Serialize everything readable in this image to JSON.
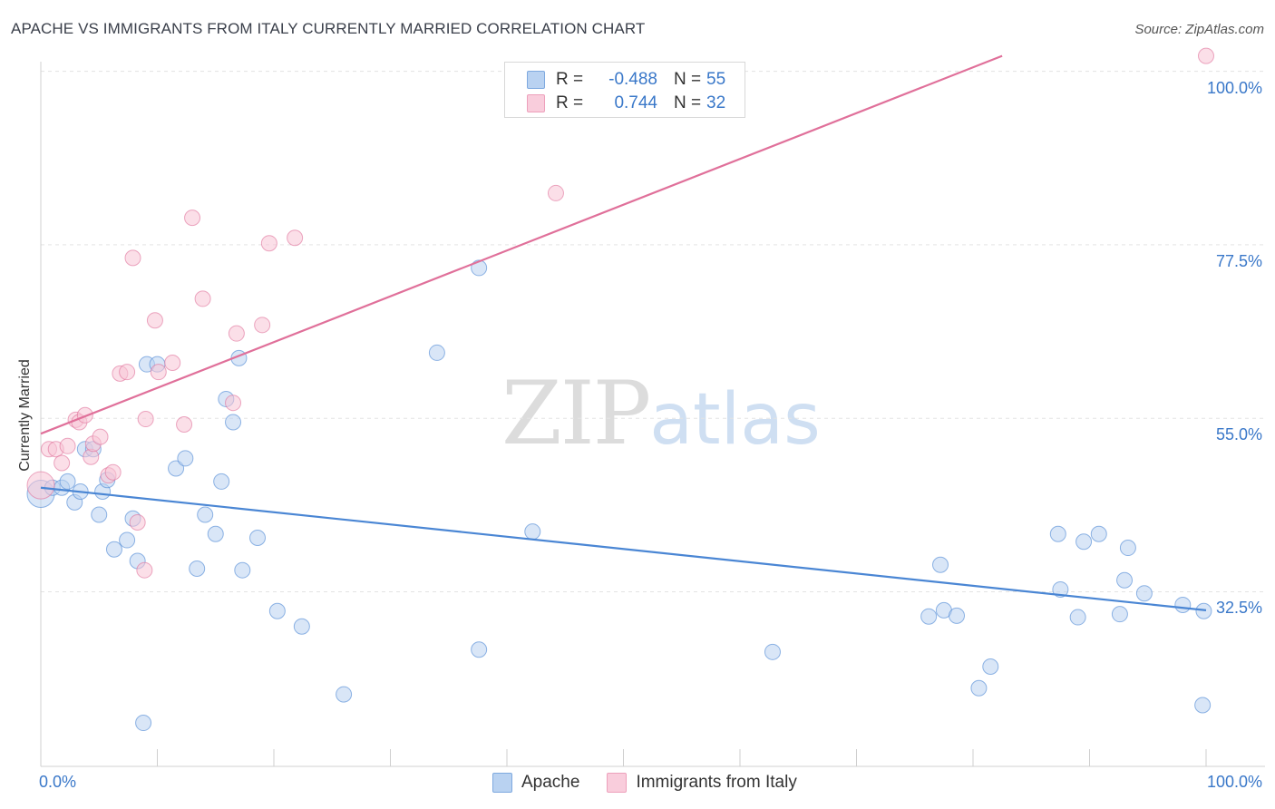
{
  "header": {
    "title": "APACHE VS IMMIGRANTS FROM ITALY CURRENTLY MARRIED CORRELATION CHART",
    "source": "Source: ZipAtlas.com"
  },
  "watermark": {
    "zip": "ZIP",
    "atlas": "atlas"
  },
  "legend_top": {
    "rows": [
      {
        "r_label": "R =",
        "r_value": "-0.488",
        "n_label": "N =",
        "n_value": "55",
        "color": "#9dc0ec"
      },
      {
        "r_label": "R =",
        "r_value": "0.744",
        "n_label": "N =",
        "n_value": "32",
        "color": "#f3a9c2"
      }
    ]
  },
  "legend_bottom": {
    "items": [
      {
        "label": "Apache"
      },
      {
        "label": "Immigrants from Italy"
      }
    ]
  },
  "chart_data": {
    "type": "scatter",
    "title": "APACHE VS IMMIGRANTS FROM ITALY CURRENTLY MARRIED CORRELATION CHART",
    "xlabel": "",
    "ylabel": "Currently Married",
    "xlim": [
      0,
      100
    ],
    "ylim": [
      10,
      102
    ],
    "x_tick_labels": [
      "0.0%",
      "100.0%"
    ],
    "y_ticks": [
      32.5,
      55.0,
      77.5,
      100.0
    ],
    "y_tick_labels": [
      "32.5%",
      "55.0%",
      "77.5%",
      "100.0%"
    ],
    "grid": true,
    "series": [
      {
        "name": "Apache",
        "color": "#4a86d4",
        "fill": "#b9d2f1",
        "r": -0.488,
        "n": 55,
        "trend": {
          "x": [
            0,
            100
          ],
          "y": [
            46.0,
            30.1
          ]
        },
        "points": [
          {
            "x": 0.0,
            "y": 45.2,
            "big": true
          },
          {
            "x": 1.0,
            "y": 46.0
          },
          {
            "x": 1.8,
            "y": 46.0
          },
          {
            "x": 2.3,
            "y": 46.8
          },
          {
            "x": 2.9,
            "y": 44.1
          },
          {
            "x": 3.4,
            "y": 45.5
          },
          {
            "x": 3.8,
            "y": 51.0
          },
          {
            "x": 4.5,
            "y": 51.0
          },
          {
            "x": 5.0,
            "y": 42.5
          },
          {
            "x": 5.3,
            "y": 45.5
          },
          {
            "x": 5.7,
            "y": 47.0
          },
          {
            "x": 6.3,
            "y": 38.0
          },
          {
            "x": 7.4,
            "y": 39.2
          },
          {
            "x": 7.9,
            "y": 42.0
          },
          {
            "x": 8.3,
            "y": 36.5
          },
          {
            "x": 8.8,
            "y": 15.5
          },
          {
            "x": 9.1,
            "y": 62.0
          },
          {
            "x": 10.0,
            "y": 62.0
          },
          {
            "x": 11.6,
            "y": 48.5
          },
          {
            "x": 12.4,
            "y": 49.8
          },
          {
            "x": 13.4,
            "y": 35.5
          },
          {
            "x": 14.1,
            "y": 42.5
          },
          {
            "x": 15.0,
            "y": 40.0
          },
          {
            "x": 15.5,
            "y": 46.8
          },
          {
            "x": 15.9,
            "y": 57.5
          },
          {
            "x": 16.5,
            "y": 54.5
          },
          {
            "x": 17.0,
            "y": 62.8
          },
          {
            "x": 17.3,
            "y": 35.3
          },
          {
            "x": 18.6,
            "y": 39.5
          },
          {
            "x": 20.3,
            "y": 30.0
          },
          {
            "x": 22.4,
            "y": 28.0
          },
          {
            "x": 26.0,
            "y": 19.2
          },
          {
            "x": 34.0,
            "y": 63.5
          },
          {
            "x": 37.6,
            "y": 74.5
          },
          {
            "x": 37.6,
            "y": 25.0
          },
          {
            "x": 42.2,
            "y": 40.3
          },
          {
            "x": 62.8,
            "y": 24.7
          },
          {
            "x": 76.2,
            "y": 29.3
          },
          {
            "x": 77.2,
            "y": 36.0
          },
          {
            "x": 77.5,
            "y": 30.1
          },
          {
            "x": 78.6,
            "y": 29.4
          },
          {
            "x": 80.5,
            "y": 20.0
          },
          {
            "x": 81.5,
            "y": 22.8
          },
          {
            "x": 87.3,
            "y": 40.0
          },
          {
            "x": 87.5,
            "y": 32.8
          },
          {
            "x": 89.0,
            "y": 29.2
          },
          {
            "x": 89.5,
            "y": 39.0
          },
          {
            "x": 90.8,
            "y": 40.0
          },
          {
            "x": 92.6,
            "y": 29.6
          },
          {
            "x": 93.0,
            "y": 34.0
          },
          {
            "x": 93.3,
            "y": 38.2
          },
          {
            "x": 94.7,
            "y": 32.3
          },
          {
            "x": 98.0,
            "y": 30.8
          },
          {
            "x": 99.7,
            "y": 17.8
          },
          {
            "x": 99.8,
            "y": 30.0
          }
        ]
      },
      {
        "name": "Immigrants from Italy",
        "color": "#e0709a",
        "fill": "#f7c4d5",
        "r": 0.744,
        "n": 32,
        "trend": {
          "x": [
            0,
            82.5
          ],
          "y": [
            53.0,
            102.0
          ]
        },
        "points": [
          {
            "x": 0.0,
            "y": 46.3,
            "big": true
          },
          {
            "x": 0.7,
            "y": 51.0
          },
          {
            "x": 1.3,
            "y": 51.0
          },
          {
            "x": 1.8,
            "y": 49.2
          },
          {
            "x": 2.3,
            "y": 51.4
          },
          {
            "x": 3.0,
            "y": 54.8
          },
          {
            "x": 3.3,
            "y": 54.5
          },
          {
            "x": 3.8,
            "y": 55.4
          },
          {
            "x": 4.3,
            "y": 50.0
          },
          {
            "x": 4.5,
            "y": 51.7
          },
          {
            "x": 5.1,
            "y": 52.6
          },
          {
            "x": 5.8,
            "y": 47.6
          },
          {
            "x": 6.2,
            "y": 48.0
          },
          {
            "x": 6.8,
            "y": 60.8
          },
          {
            "x": 7.4,
            "y": 61.0
          },
          {
            "x": 7.9,
            "y": 75.8
          },
          {
            "x": 8.3,
            "y": 41.5
          },
          {
            "x": 8.9,
            "y": 35.3
          },
          {
            "x": 9.0,
            "y": 54.9
          },
          {
            "x": 9.8,
            "y": 67.7
          },
          {
            "x": 10.1,
            "y": 61.0
          },
          {
            "x": 11.3,
            "y": 62.2
          },
          {
            "x": 12.3,
            "y": 54.2
          },
          {
            "x": 13.0,
            "y": 81.0
          },
          {
            "x": 13.9,
            "y": 70.5
          },
          {
            "x": 16.5,
            "y": 57.0
          },
          {
            "x": 16.8,
            "y": 66.0
          },
          {
            "x": 19.0,
            "y": 67.1
          },
          {
            "x": 19.6,
            "y": 77.7
          },
          {
            "x": 21.8,
            "y": 78.4
          },
          {
            "x": 44.2,
            "y": 84.2
          },
          {
            "x": 100.0,
            "y": 102.0
          }
        ]
      }
    ]
  }
}
